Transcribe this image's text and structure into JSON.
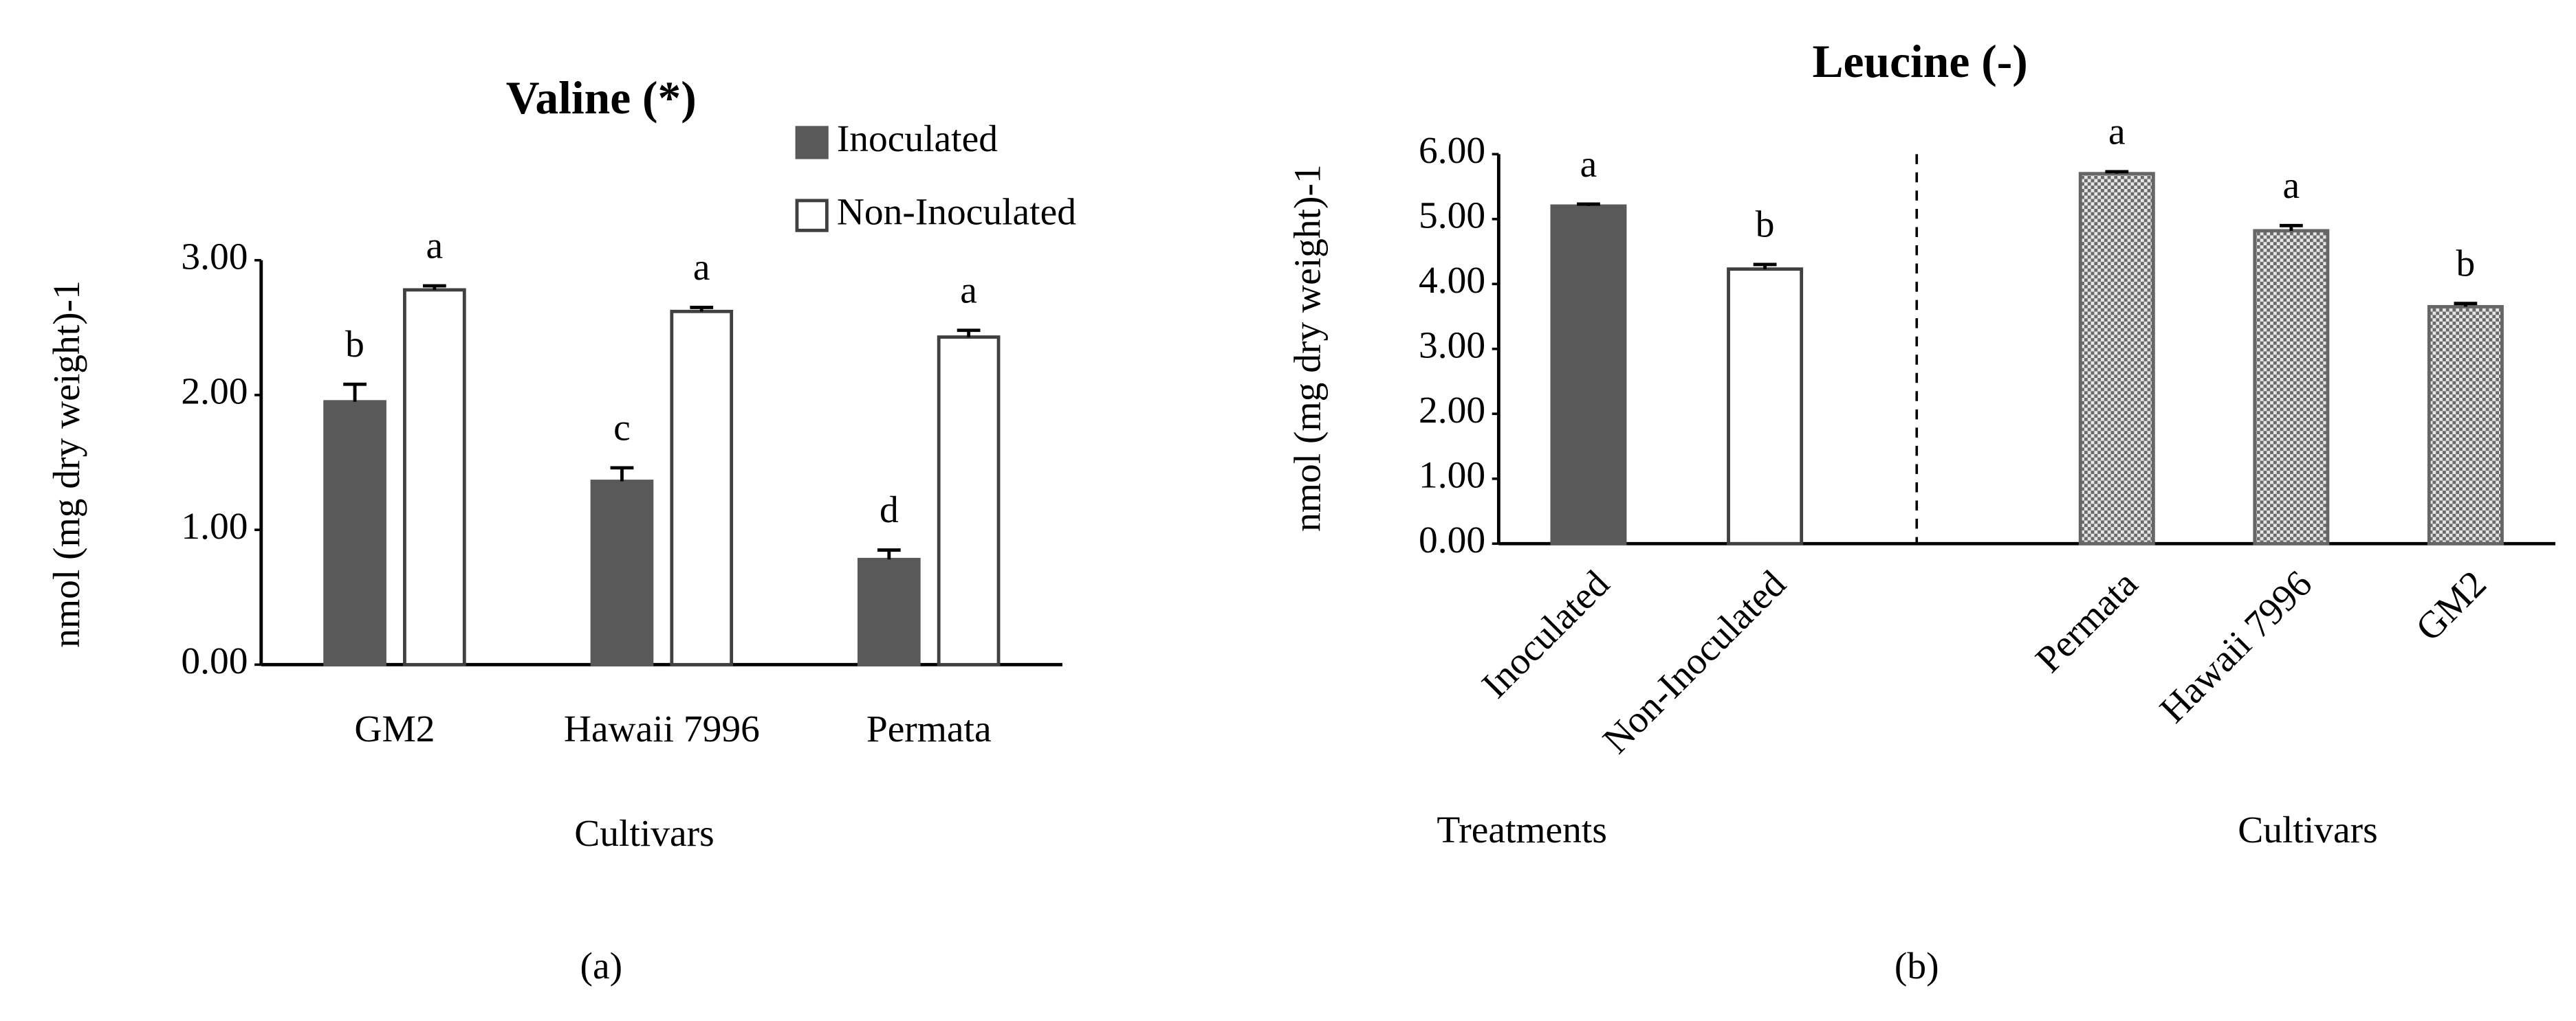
{
  "chart_data": [
    {
      "type": "bar",
      "title": "Valine (*)",
      "x_label": "Cultivars",
      "y_label": "nmol (mg dry weight)-1",
      "panel_label": "(a)",
      "categories": [
        "GM2",
        "Hawaii 7996",
        "Permata"
      ],
      "series": [
        {
          "name": "Inoculated",
          "color": "#595959",
          "values": [
            1.95,
            1.36,
            0.78
          ],
          "errors": [
            0.13,
            0.1,
            0.07
          ],
          "letters": [
            "b",
            "c",
            "d"
          ]
        },
        {
          "name": "Non-Inoculated",
          "color": "#ffffff",
          "values": [
            2.78,
            2.62,
            2.43
          ],
          "errors": [
            0.03,
            0.03,
            0.05
          ],
          "letters": [
            "a",
            "a",
            "a"
          ]
        }
      ],
      "ylim": [
        0,
        3
      ],
      "yticks": [
        {
          "value": 0,
          "label": "0.00"
        },
        {
          "value": 1,
          "label": "1.00"
        },
        {
          "value": 2,
          "label": "2.00"
        },
        {
          "value": 3,
          "label": "3.00"
        }
      ],
      "legend": "upper right"
    },
    {
      "type": "bar",
      "title": "Leucine (-)",
      "y_label": "nmol (mg dry weight)-1",
      "panel_label": "(b)",
      "categories": [
        "Inoculated",
        "Non-Inoculated",
        "Permata",
        "Hawaii 7996",
        "GM2"
      ],
      "values": [
        5.2,
        4.23,
        5.7,
        4.82,
        3.65
      ],
      "errors": [
        0.03,
        0.07,
        0.03,
        0.08,
        0.05
      ],
      "letters": [
        "a",
        "b",
        "a",
        "a",
        "b"
      ],
      "colors": [
        "#595959",
        "#ffffff",
        "checker",
        "checker",
        "checker"
      ],
      "groups": [
        {
          "name": "Treatments",
          "categories": [
            "Inoculated",
            "Non-Inoculated"
          ]
        },
        {
          "name": "Cultivars",
          "categories": [
            "Permata",
            "Hawaii 7996",
            "GM2"
          ]
        }
      ],
      "ylim": [
        0,
        6
      ],
      "yticks": [
        {
          "value": 0,
          "label": "0.00"
        },
        {
          "value": 1,
          "label": "1.00"
        },
        {
          "value": 2,
          "label": "2.00"
        },
        {
          "value": 3,
          "label": "3.00"
        },
        {
          "value": 4,
          "label": "4.00"
        },
        {
          "value": 5,
          "label": "5.00"
        },
        {
          "value": 6,
          "label": "6.00"
        }
      ]
    }
  ]
}
